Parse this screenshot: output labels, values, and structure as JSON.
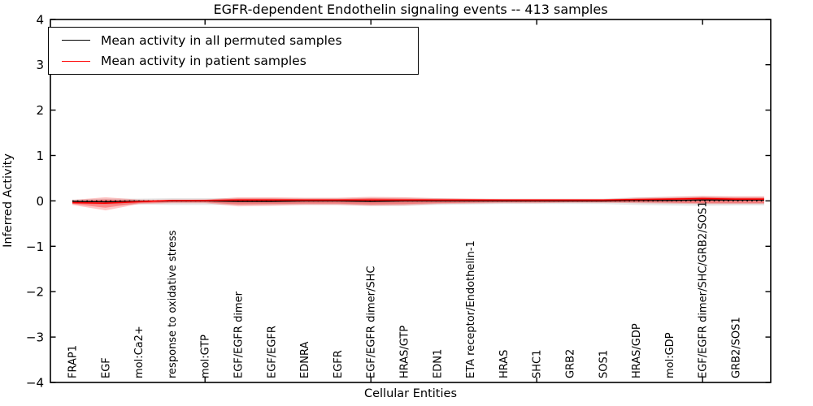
{
  "title": "EGFR-dependent Endothelin signaling events -- 413 samples",
  "axes": {
    "xlabel": "Cellular Entities",
    "ylabel": "Inferred Activity"
  },
  "legend": {
    "position": "upper left",
    "entries": [
      {
        "label": "Mean activity in all permuted samples",
        "color": "#000000"
      },
      {
        "label": "Mean activity in patient samples",
        "color": "#ff0000"
      }
    ]
  },
  "chart_data": {
    "type": "line",
    "title": "EGFR-dependent Endothelin signaling events -- 413 samples",
    "xlabel": "Cellular Entities",
    "ylabel": "Inferred Activity",
    "ylim": [
      -4,
      4
    ],
    "yticks": [
      -4,
      -3,
      -2,
      -1,
      0,
      1,
      2,
      3,
      4
    ],
    "grid": false,
    "legend_position": "upper left",
    "categories": [
      "FRAP1",
      "EGF",
      "mol:Ca2+",
      "response to oxidative stress",
      "mol:GTP",
      "EGF/EGFR dimer",
      "EGF/EGFR",
      "EDNRA",
      "EGFR",
      "EGF/EGFR dimer/SHC",
      "HRAS/GTP",
      "EDN1",
      "ETA receptor/Endothelin-1",
      "HRAS",
      "SHC1",
      "GRB2",
      "SOS1",
      "HRAS/GDP",
      "mol:GDP",
      "EGF/EGFR dimer/SHC/GRB2/SOS1",
      "GRB2/SOS1"
    ],
    "xticks_major_indices": [
      4,
      9,
      14,
      19
    ],
    "zero_line": {
      "y": 0,
      "style": "dotted",
      "color": "#000000"
    },
    "series": [
      {
        "name": "Mean activity in all permuted samples",
        "color": "#000000",
        "values": [
          -0.01,
          -0.02,
          -0.01,
          0,
          0,
          -0.01,
          -0.01,
          0,
          0,
          -0.01,
          0,
          0,
          0,
          0,
          0,
          0,
          0,
          0.01,
          0.01,
          0.02,
          0.02
        ]
      },
      {
        "name": "Mean activity in patient samples",
        "color": "#ff0000",
        "values": [
          -0.04,
          -0.05,
          -0.02,
          0.01,
          0.01,
          0.02,
          0.02,
          0.02,
          0.02,
          0.02,
          0.02,
          0.02,
          0.02,
          0.02,
          0.02,
          0.02,
          0.02,
          0.03,
          0.04,
          0.05,
          0.04
        ]
      }
    ],
    "bands": [
      {
        "name": "permuted-samples-range",
        "color": "#808080",
        "opacity": 0.2,
        "upper": [
          0.03,
          0.05,
          0.05,
          0.06,
          0.06,
          0.06,
          0.06,
          0.06,
          0.06,
          0.07,
          0.07,
          0.06,
          0.05,
          0.05,
          0.05,
          0.05,
          0.05,
          0.08,
          0.09,
          0.1,
          0.09
        ],
        "lower": [
          -0.06,
          -0.09,
          -0.08,
          -0.09,
          -0.09,
          -0.09,
          -0.09,
          -0.09,
          -0.09,
          -0.11,
          -0.11,
          -0.09,
          -0.08,
          -0.07,
          -0.07,
          -0.07,
          -0.07,
          -0.09,
          -0.1,
          -0.11,
          -0.1
        ]
      },
      {
        "name": "patient-samples-range-outer",
        "color": "#ff0000",
        "opacity": 0.22,
        "upper": [
          0.02,
          0.08,
          0.03,
          0.02,
          0.03,
          0.08,
          0.08,
          0.07,
          0.07,
          0.09,
          0.08,
          0.06,
          0.05,
          0.04,
          0.04,
          0.04,
          0.04,
          0.07,
          0.09,
          0.11,
          0.1
        ],
        "lower": [
          -0.09,
          -0.21,
          -0.07,
          -0.05,
          -0.05,
          -0.12,
          -0.11,
          -0.09,
          -0.09,
          -0.11,
          -0.1,
          -0.07,
          -0.06,
          -0.05,
          -0.05,
          -0.04,
          -0.04,
          -0.05,
          -0.06,
          -0.07,
          -0.07
        ]
      },
      {
        "name": "patient-samples-range-inner",
        "color": "#ff0000",
        "opacity": 0.3,
        "upper": [
          0,
          0.03,
          0.01,
          0.01,
          0.02,
          0.05,
          0.05,
          0.04,
          0.04,
          0.06,
          0.05,
          0.04,
          0.04,
          0.03,
          0.03,
          0.03,
          0.03,
          0.05,
          0.06,
          0.08,
          0.07
        ],
        "lower": [
          -0.07,
          -0.15,
          -0.05,
          -0.03,
          -0.03,
          -0.08,
          -0.07,
          -0.06,
          -0.06,
          -0.08,
          -0.07,
          -0.05,
          -0.04,
          -0.03,
          -0.03,
          -0.03,
          -0.03,
          -0.03,
          -0.04,
          -0.05,
          -0.05
        ]
      }
    ]
  }
}
